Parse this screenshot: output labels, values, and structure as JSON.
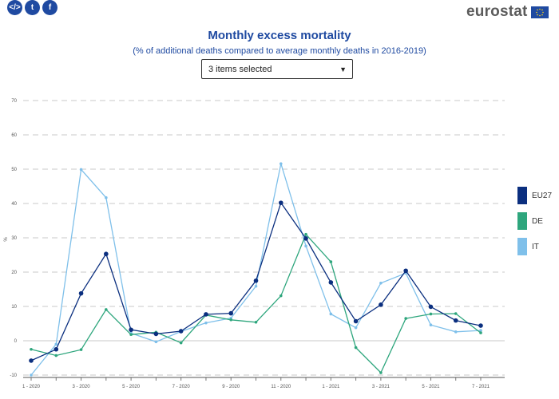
{
  "share": {
    "embed_icon": "embed-icon",
    "twitter_icon": "twitter-icon",
    "facebook_icon": "facebook-icon",
    "embed_glyph": "</>",
    "twitter_glyph": "t",
    "facebook_glyph": "f"
  },
  "logo": {
    "text": "eurostat",
    "flag_icon": "eu-flag-icon"
  },
  "selector": {
    "value": "3 items selected",
    "arrow_icon": "caret-down-icon"
  },
  "colors": {
    "EU27": "#0b2f7f",
    "DE": "#2ea67d",
    "IT": "#7fc0ea",
    "grid": "#c8c8c8"
  },
  "chart_data": {
    "type": "line",
    "title": "Monthly excess mortality",
    "subtitle": "(% of additional deaths compared to average monthly deaths in 2016-2019)",
    "ylabel": "%",
    "ylim": [
      -10,
      70
    ],
    "yticks": [
      -10,
      0,
      10,
      20,
      30,
      40,
      50,
      60,
      70
    ],
    "grid": true,
    "legend_position": "right",
    "x": [
      "1 - 2020",
      "2 - 2020",
      "3 - 2020",
      "4 - 2020",
      "5 - 2020",
      "6 - 2020",
      "7 - 2020",
      "8 - 2020",
      "9 - 2020",
      "10 - 2020",
      "11 - 2020",
      "12 - 2020",
      "1 - 2021",
      "2 - 2021",
      "3 - 2021",
      "4 - 2021",
      "5 - 2021",
      "6 - 2021",
      "7 - 2021"
    ],
    "xtick_labels": [
      "1 - 2020",
      "",
      "3 - 2020",
      "",
      "5 - 2020",
      "",
      "7 - 2020",
      "",
      "9 - 2020",
      "",
      "11 - 2020",
      "",
      "1 - 2021",
      "",
      "3 - 2021",
      "",
      "5 - 2021",
      "",
      "7 - 2021"
    ],
    "series": [
      {
        "name": "EU27",
        "values": [
          -5.8,
          -2.5,
          13.8,
          25.3,
          3.2,
          2.0,
          2.8,
          7.7,
          8.0,
          17.5,
          40.2,
          29.8,
          17.0,
          5.7,
          10.5,
          20.4,
          9.9,
          5.9,
          4.4
        ]
      },
      {
        "name": "DE",
        "values": [
          -2.5,
          -4.3,
          -2.6,
          9.1,
          1.8,
          2.5,
          -0.6,
          7.5,
          6.1,
          5.4,
          13.1,
          31.0,
          23.0,
          -2.0,
          -9.3,
          6.5,
          7.8,
          7.9,
          2.3
        ]
      },
      {
        "name": "IT",
        "values": [
          -10.0,
          -1.0,
          49.9,
          41.7,
          2.2,
          -0.3,
          2.7,
          5.2,
          6.6,
          15.9,
          51.6,
          27.6,
          7.8,
          3.8,
          16.8,
          19.7,
          4.6,
          2.6,
          3.0
        ]
      }
    ]
  }
}
